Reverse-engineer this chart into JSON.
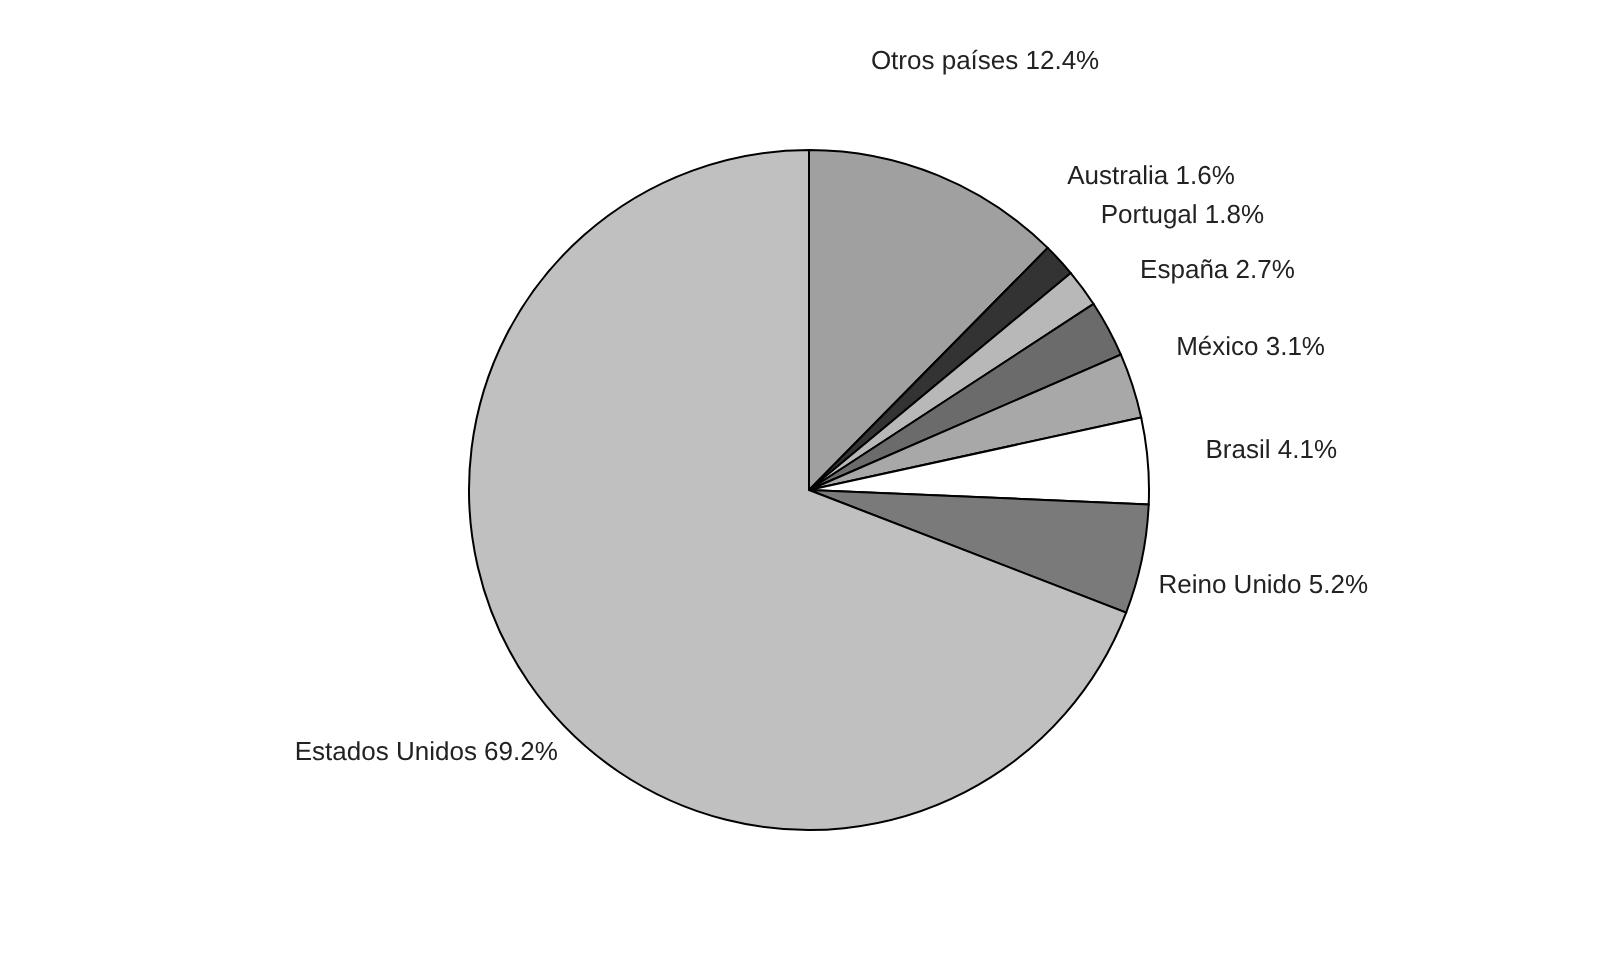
{
  "chart_data": {
    "type": "pie",
    "categories": [
      "Otros países",
      "Australia",
      "Portugal",
      "España",
      "México",
      "Brasil",
      "Reino Unido",
      "Estados Unidos"
    ],
    "values": [
      12.4,
      1.6,
      1.8,
      2.7,
      3.1,
      4.1,
      5.2,
      69.2
    ],
    "value_labels": [
      "12.4%",
      "1.6%",
      "1.8%",
      "2.7%",
      "3.1%",
      "4.1%",
      "5.2%",
      "69.2%"
    ],
    "colors": [
      "#a0a0a0",
      "#333333",
      "#b8b8b8",
      "#6b6b6b",
      "#a8a8a8",
      "#ffffff",
      "#7a7a7a",
      "#c0c0c0"
    ]
  }
}
